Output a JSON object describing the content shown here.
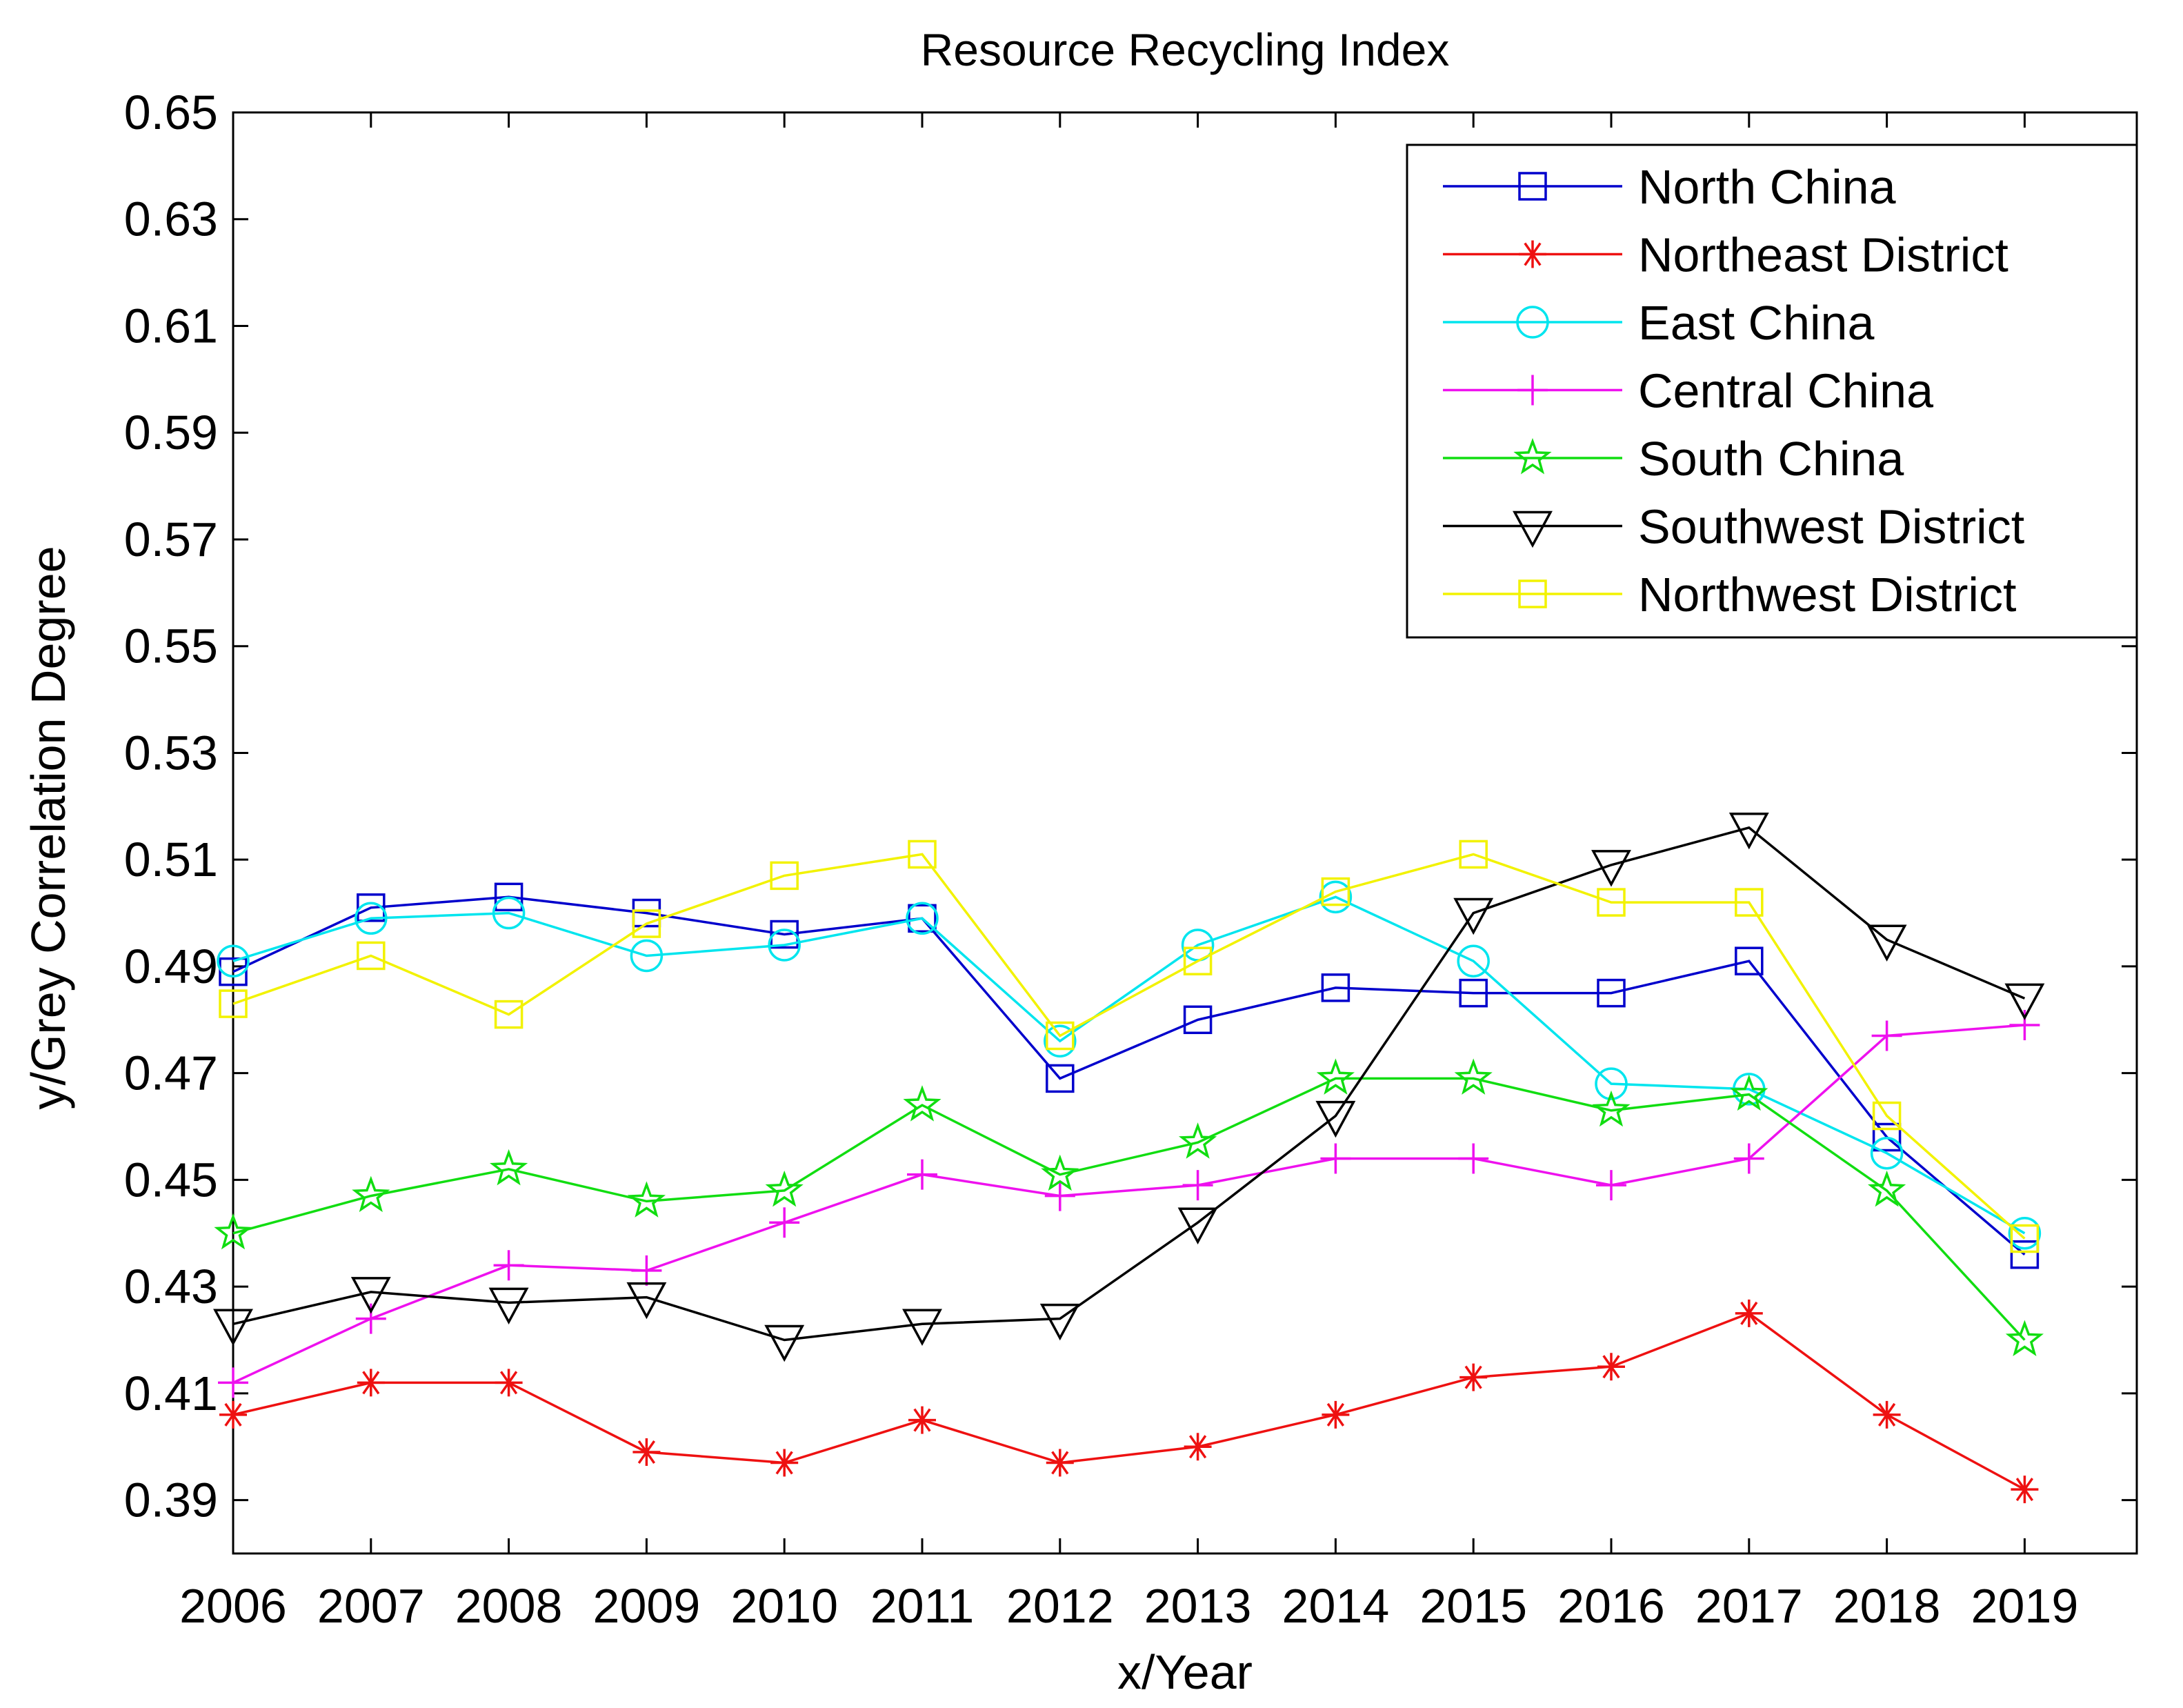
{
  "chart_data": {
    "type": "line",
    "title": "Resource Recycling Index",
    "xlabel": "x/Year",
    "ylabel": "y/Grey Correlation Degree",
    "x": [
      "2006",
      "2007",
      "2008",
      "2009",
      "2010",
      "2011",
      "2012",
      "2013",
      "2014",
      "2015",
      "2016",
      "2017",
      "2018",
      "2019"
    ],
    "ylim": [
      0.38,
      0.65
    ],
    "yticks": [
      "0.39",
      "0.41",
      "0.43",
      "0.45",
      "0.47",
      "0.49",
      "0.51",
      "0.53",
      "0.55",
      "0.57",
      "0.59",
      "0.61",
      "0.63",
      "0.65"
    ],
    "grid": false,
    "legend_position": "top-right",
    "series": [
      {
        "name": "North China",
        "color": "#0000cc",
        "marker": "square",
        "values": [
          0.489,
          0.501,
          0.503,
          0.5,
          0.496,
          0.499,
          0.469,
          0.48,
          0.486,
          0.485,
          0.485,
          0.491,
          0.458,
          0.436
        ]
      },
      {
        "name": "Northeast District",
        "color": "#ee1111",
        "marker": "asterisk",
        "values": [
          0.406,
          0.412,
          0.412,
          0.399,
          0.397,
          0.405,
          0.397,
          0.4,
          0.406,
          0.413,
          0.415,
          0.425,
          0.406,
          0.392
        ]
      },
      {
        "name": "East China",
        "color": "#00e5ee",
        "marker": "circle",
        "values": [
          0.491,
          0.499,
          0.5,
          0.492,
          0.494,
          0.499,
          0.476,
          0.494,
          0.503,
          0.491,
          0.468,
          0.467,
          0.455,
          0.44
        ]
      },
      {
        "name": "Central China",
        "color": "#ee11ee",
        "marker": "plus",
        "values": [
          0.412,
          0.424,
          0.434,
          0.433,
          0.442,
          0.451,
          0.447,
          0.449,
          0.454,
          0.454,
          0.449,
          0.454,
          0.477,
          0.479
        ]
      },
      {
        "name": "South China",
        "color": "#11dd11",
        "marker": "star",
        "values": [
          0.44,
          0.447,
          0.452,
          0.446,
          0.448,
          0.464,
          0.451,
          0.457,
          0.469,
          0.469,
          0.463,
          0.466,
          0.448,
          0.42
        ]
      },
      {
        "name": "Southwest District",
        "color": "#000000",
        "marker": "triangle-down",
        "values": [
          0.423,
          0.429,
          0.427,
          0.428,
          0.42,
          0.423,
          0.424,
          0.442,
          0.462,
          0.5,
          0.509,
          0.516,
          0.495,
          0.484
        ]
      },
      {
        "name": "Northwest District",
        "color": "#f2f200",
        "marker": "square",
        "values": [
          0.483,
          0.492,
          0.481,
          0.498,
          0.507,
          0.511,
          0.477,
          0.491,
          0.504,
          0.511,
          0.502,
          0.502,
          0.462,
          0.439
        ]
      }
    ]
  }
}
